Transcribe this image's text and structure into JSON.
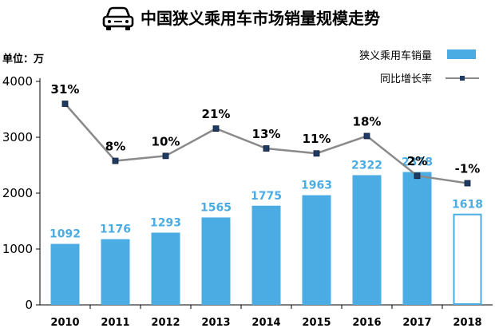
{
  "page": {
    "title": "中国狭义乘用车市场销量规模走势",
    "unit": "单位：万",
    "title_icon": "car-icon"
  },
  "colors": {
    "bar": "#4aace2",
    "bar_outline": "#4aace2",
    "line": "#8a8a8a",
    "marker": "#1f3b64",
    "bar_label": "#4aace2",
    "text": "#000000"
  },
  "chart_data": {
    "type": "bar",
    "categories": [
      "2010",
      "2011",
      "2012",
      "2013",
      "2014",
      "2015",
      "2016",
      "2017",
      "2018"
    ],
    "series": [
      {
        "name": "狭义乘用车销量",
        "type": "bar",
        "axis": "left",
        "values": [
          1092,
          1176,
          1293,
          1565,
          1775,
          1963,
          2322,
          2378,
          1618
        ],
        "labels": [
          "1092",
          "1176",
          "1293",
          "1565",
          "1775",
          "1963",
          "2322",
          "2378",
          "1618"
        ],
        "hollow": [
          false,
          false,
          false,
          false,
          false,
          false,
          false,
          false,
          true
        ]
      },
      {
        "name": "同比增长率",
        "type": "line",
        "axis": "right-hidden",
        "values": [
          31,
          8,
          10,
          21,
          13,
          11,
          18,
          2,
          -1
        ],
        "labels": [
          "31%",
          "8%",
          "10%",
          "21%",
          "13%",
          "11%",
          "18%",
          "2%",
          "-1%"
        ]
      }
    ],
    "yticks": [
      "0",
      "1000",
      "2000",
      "3000",
      "4000"
    ],
    "ylim": [
      0,
      4000
    ],
    "y2lim": [
      -50,
      40
    ],
    "grid": false,
    "legend_position": "top-right"
  }
}
